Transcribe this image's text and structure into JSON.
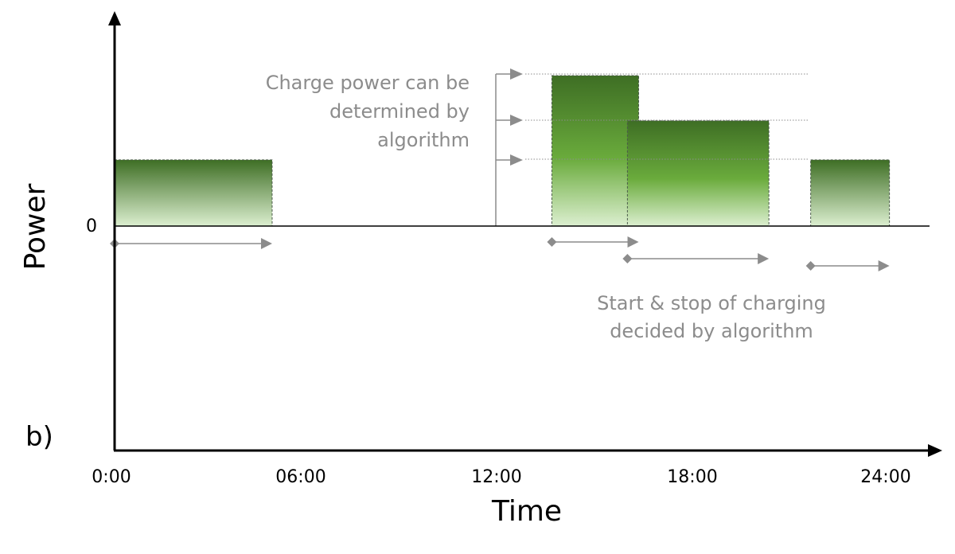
{
  "panel_label": "b)",
  "axes": {
    "y_label": "Power",
    "x_label": "Time",
    "zero_label": "0",
    "x_ticks": [
      "0:00",
      "06:00",
      "12:00",
      "18:00",
      "24:00"
    ]
  },
  "annotations": {
    "power_note": [
      "Charge power can be",
      "determined by",
      "algorithm"
    ],
    "timing_note": [
      "Start & stop of charging",
      "decided by algorithm"
    ]
  },
  "charging_blocks": [
    {
      "start_hour": 0.0,
      "end_hour": 4.9,
      "power_level": 0.44
    },
    {
      "start_hour": 13.6,
      "end_hour": 16.3,
      "power_level": 1.0
    },
    {
      "start_hour": 15.95,
      "end_hour": 20.35,
      "power_level": 0.7
    },
    {
      "start_hour": 21.65,
      "end_hour": 24.1,
      "power_level": 0.44
    }
  ],
  "time_arrows": [
    {
      "start_hour": 0.0,
      "end_hour": 4.9
    },
    {
      "start_hour": 13.6,
      "end_hour": 16.3
    },
    {
      "start_hour": 15.95,
      "end_hour": 20.35
    },
    {
      "start_hour": 21.65,
      "end_hour": 24.1
    }
  ],
  "colors": {
    "axis": "#000000",
    "annotation": "#8c8c8c",
    "bar_dark": "#3e6e24",
    "bar_mid": "#6aab3c",
    "bar_light": "#dcefd0"
  }
}
